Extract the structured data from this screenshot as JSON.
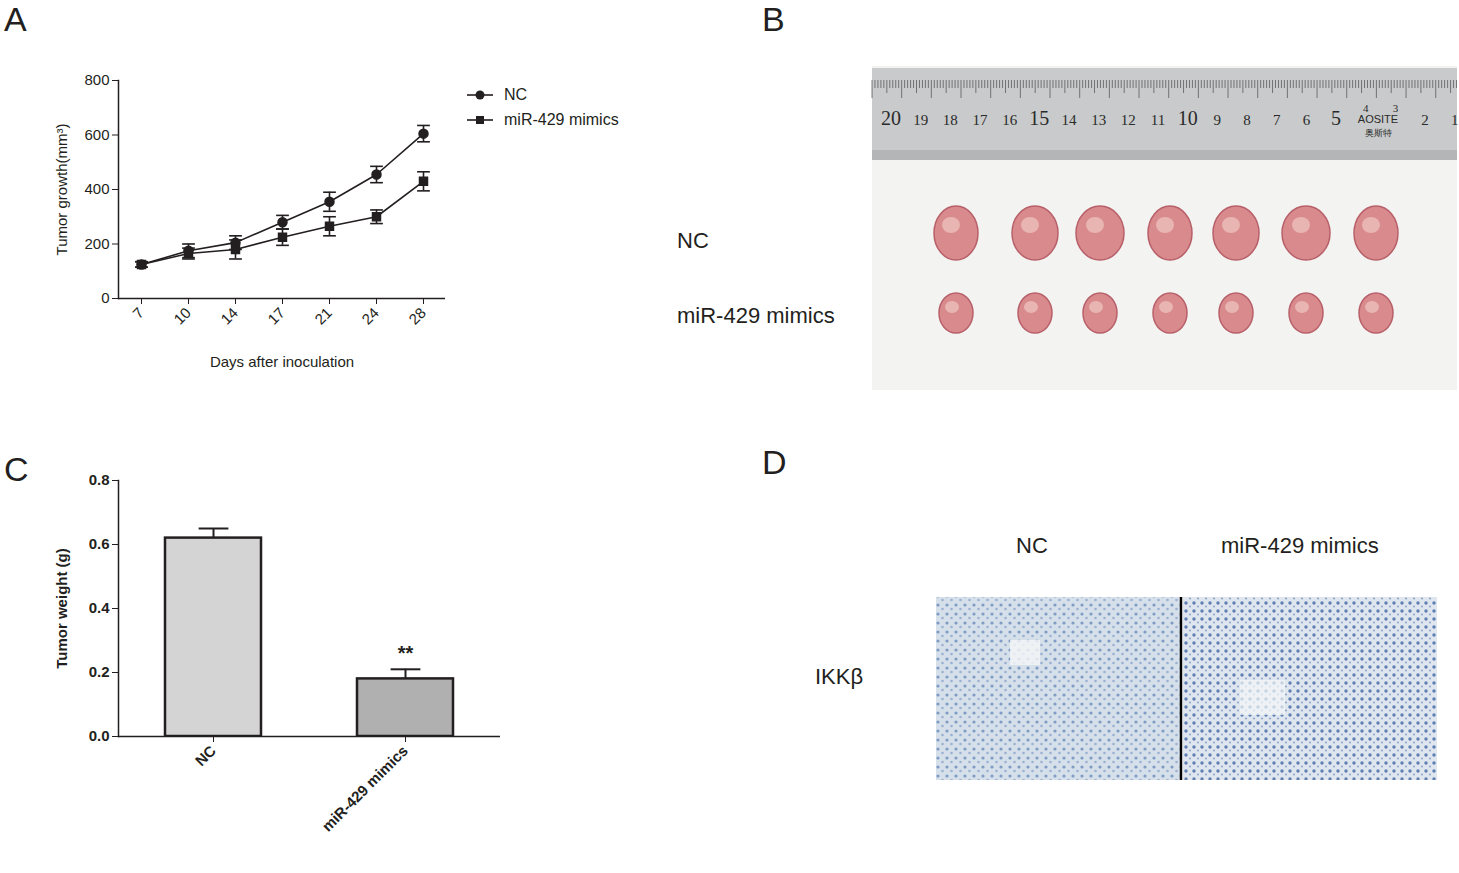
{
  "chart_data": [
    {
      "type": "line",
      "title": "A",
      "x_label": "Days after inoculation",
      "y_label": "Tumor growth(mm³)",
      "categories": [
        "7",
        "10",
        "14",
        "17",
        "21",
        "24",
        "28"
      ],
      "series": [
        {
          "name": "NC",
          "color": "#231f20",
          "marker": "circle",
          "values": [
            125,
            175,
            205,
            280,
            355,
            455,
            605
          ],
          "errors": [
            10,
            25,
            25,
            25,
            35,
            30,
            30
          ]
        },
        {
          "name": "miR-429 mimics",
          "color": "#231f20",
          "marker": "square",
          "values": [
            125,
            165,
            180,
            225,
            265,
            300,
            430
          ],
          "errors": [
            10,
            20,
            35,
            30,
            35,
            25,
            35
          ]
        }
      ],
      "ylim": [
        0,
        800
      ],
      "yticks": [
        0,
        200,
        400,
        600,
        800
      ],
      "legend": "right"
    },
    {
      "type": "bar",
      "title": "C",
      "y_label": "Tumor weight (g)",
      "categories": [
        "NC",
        "miR-429 mimics"
      ],
      "values": [
        0.62,
        0.18
      ],
      "errors": [
        0.03,
        0.03
      ],
      "colors": [
        "#d4d4d4",
        "#b0b0b0"
      ],
      "annotations": [
        {
          "category": "miR-429 mimics",
          "text": "**"
        }
      ],
      "ylim": [
        0,
        0.8
      ],
      "yticks": [
        {
          "value": 0,
          "label": "0.0"
        },
        0.2,
        0.4,
        0.6,
        0.8
      ]
    }
  ],
  "photo_panels": [
    {
      "title": "B",
      "row_labels": [
        "NC",
        "miR-429 mimics"
      ],
      "ruler_numbers": [
        "20",
        "19",
        "18",
        "17",
        "16",
        "15",
        "14",
        "13",
        "12",
        "11",
        "10",
        "9",
        "8",
        "7",
        "6",
        "5",
        "4",
        "3",
        "2",
        "1"
      ],
      "ruler_brand": "AOSITE",
      "ruler_brand_local": "奥斯特"
    },
    {
      "title": "D",
      "column_labels": [
        "NC",
        "miR-429 mimics"
      ],
      "row_labels": [
        "IKKβ"
      ]
    }
  ]
}
